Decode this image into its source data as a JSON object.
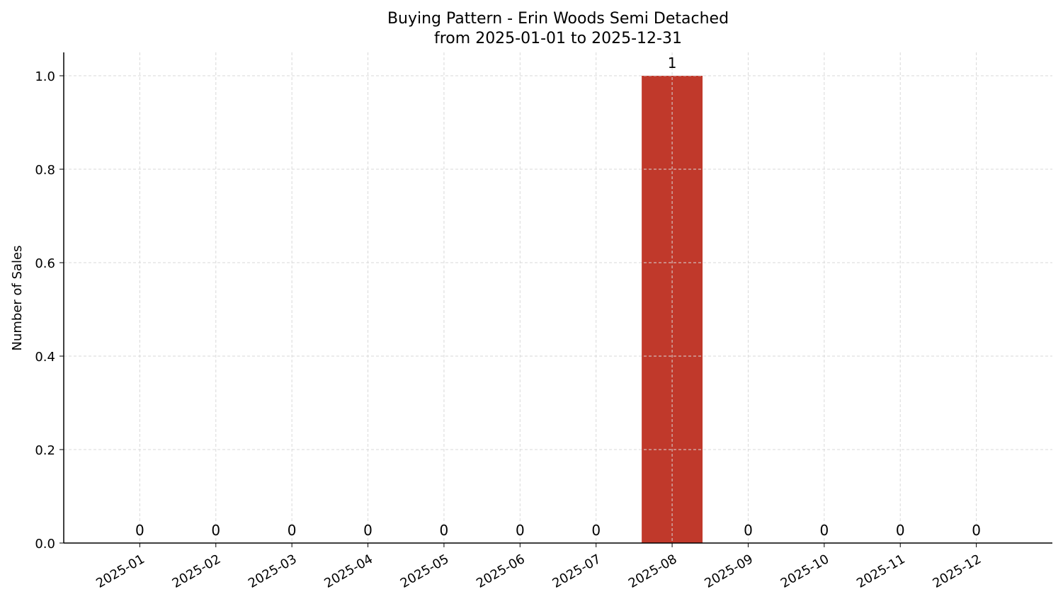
{
  "chart_data": {
    "type": "bar",
    "title": "Buying Pattern - Erin Woods Semi Detached",
    "subtitle": "from 2025-01-01 to 2025-12-31",
    "xlabel": "",
    "ylabel": "Number of Sales",
    "categories": [
      "2025-01",
      "2025-02",
      "2025-03",
      "2025-04",
      "2025-05",
      "2025-06",
      "2025-07",
      "2025-08",
      "2025-09",
      "2025-10",
      "2025-11",
      "2025-12"
    ],
    "values": [
      0,
      0,
      0,
      0,
      0,
      0,
      0,
      1,
      0,
      0,
      0,
      0
    ],
    "data_labels": [
      "0",
      "0",
      "0",
      "0",
      "0",
      "0",
      "0",
      "1",
      "0",
      "0",
      "0",
      "0"
    ],
    "ylim": [
      0,
      1.05
    ],
    "yticks": [
      0.0,
      0.2,
      0.4,
      0.6,
      0.8,
      1.0
    ],
    "ytick_labels": [
      "0.0",
      "0.2",
      "0.4",
      "0.6",
      "0.8",
      "1.0"
    ],
    "grid": true,
    "bar_color": "#c0392b",
    "grid_color": "#d9d9d9"
  }
}
